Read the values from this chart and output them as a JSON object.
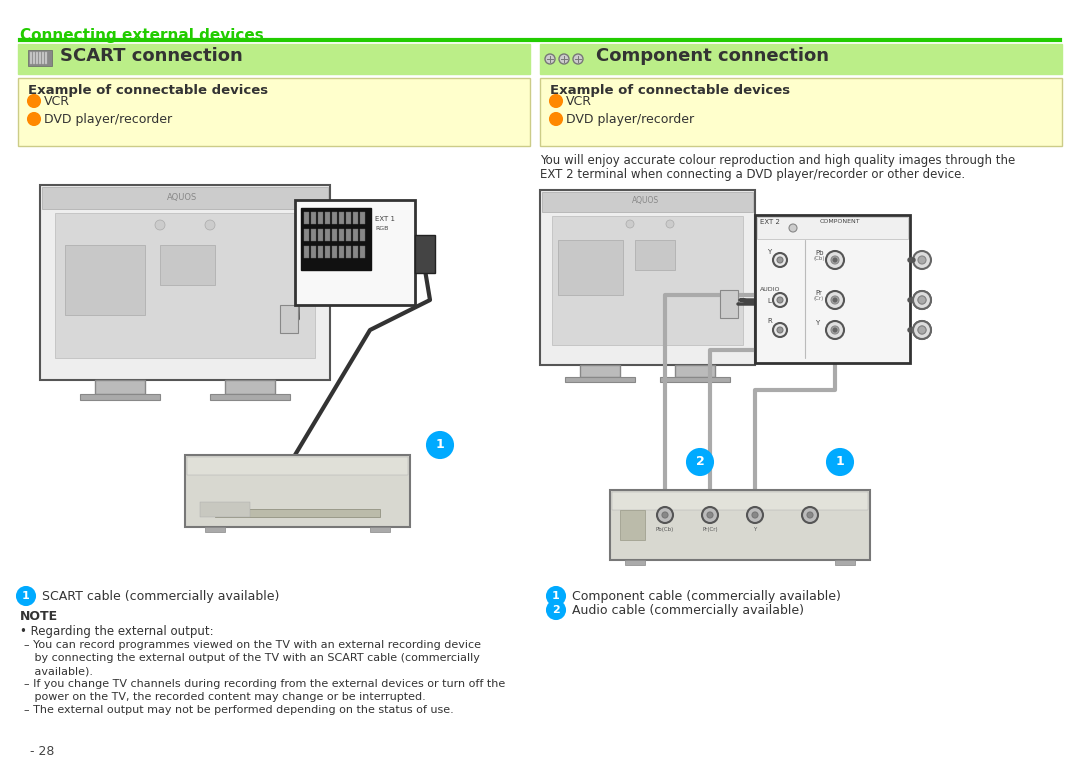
{
  "page_bg": "#ffffff",
  "green_line_color": "#22cc00",
  "header_text": "Connecting external devices",
  "header_text_color": "#22cc00",
  "scart_section_bg": "#bbee88",
  "scart_title": "SCART connection",
  "component_section_bg": "#bbee88",
  "component_title": "Component connection",
  "example_box_bg": "#ffffcc",
  "example_title": "Example of connectable devices",
  "orange_bullet": "#ff8800",
  "scart_items": [
    "VCR",
    "DVD player/recorder"
  ],
  "component_items": [
    "VCR",
    "DVD player/recorder"
  ],
  "component_desc1": "You will enjoy accurate colour reproduction and high quality images through the",
  "component_desc2": "EXT 2 terminal when connecting a DVD player/recorder or other device.",
  "scart_note_title": "NOTE",
  "scart_note1_text": "SCART cable (commercially available)",
  "scart_note_bullet": "Regarding the external output:",
  "scart_note_dash1a": "– You can record programmes viewed on the TV with an external recording device",
  "scart_note_dash1b": "   by connecting the external output of the TV with an SCART cable (commercially",
  "scart_note_dash1c": "   available).",
  "scart_note_dash2a": "– If you change TV channels during recording from the external devices or turn off the",
  "scart_note_dash2b": "   power on the TV, the recorded content may change or be interrupted.",
  "scart_note_dash3": "– The external output may not be performed depending on the status of use.",
  "comp_note1_text": "Component cable (commercially available)",
  "comp_note2_text": "Audio cable (commercially available)",
  "page_number": "- 28",
  "cyan_circle_color": "#00aaff",
  "tv_body_color": "#e8e8e8",
  "tv_border_color": "#555555",
  "tv_inner_color": "#d8d8d8",
  "tv_stand_color": "#cccccc",
  "scart_port_bg": "#111111",
  "panel_bg": "#f5f5f5",
  "dvd_body": "#d5d5d0",
  "cable_color": "#333333"
}
